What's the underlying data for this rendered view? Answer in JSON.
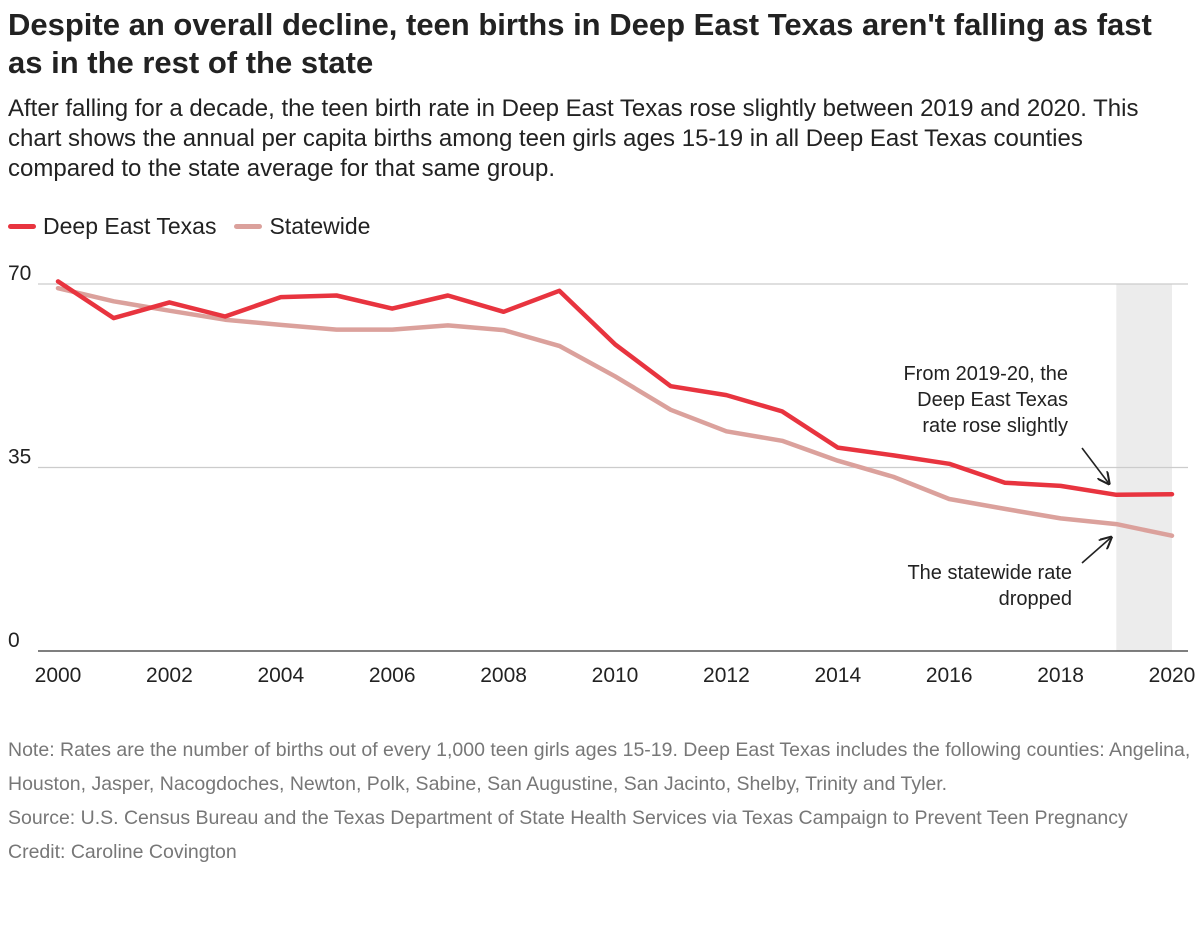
{
  "title": "Despite an overall decline, teen births in Deep East Texas aren't falling as fast as in the rest of the state",
  "subtitle": "After falling for a decade, the teen birth rate in Deep East Texas rose slightly between 2019 and 2020. This chart shows the annual per capita births among teen girls ages 15-19 in all Deep East Texas counties compared to the state average for that same group.",
  "legend": [
    {
      "label": "Deep East Texas",
      "color": "#e8343f"
    },
    {
      "label": "Statewide",
      "color": "#dba19c"
    }
  ],
  "chart_data": {
    "type": "line",
    "x": [
      2000,
      2001,
      2002,
      2003,
      2004,
      2005,
      2006,
      2007,
      2008,
      2009,
      2010,
      2011,
      2012,
      2013,
      2014,
      2015,
      2016,
      2017,
      2018,
      2019,
      2020
    ],
    "series": [
      {
        "name": "Deep East Texas",
        "color": "#e8343f",
        "values": [
          70.5,
          63.5,
          66.5,
          63.8,
          67.5,
          67.8,
          65.3,
          67.8,
          64.7,
          68.7,
          58.5,
          50.5,
          48.8,
          45.7,
          38.8,
          37.3,
          35.7,
          32.1,
          31.5,
          29.8,
          29.9
        ]
      },
      {
        "name": "Statewide",
        "color": "#dba19c",
        "values": [
          69.2,
          66.7,
          64.9,
          63.2,
          62.2,
          61.3,
          61.3,
          62.1,
          61.2,
          58.2,
          52.4,
          46.0,
          41.9,
          40.1,
          36.3,
          33.2,
          29.0,
          27.1,
          25.3,
          24.2,
          22.0
        ]
      }
    ],
    "x_ticks": [
      "2000",
      "2002",
      "2004",
      "2006",
      "2008",
      "2010",
      "2012",
      "2014",
      "2016",
      "2018",
      "2020"
    ],
    "y_ticks": [
      "0",
      "35",
      "70"
    ],
    "ylim": [
      0,
      70
    ],
    "xlim": [
      2000,
      2020
    ],
    "highlight_range": [
      2019,
      2020
    ],
    "annotations": [
      {
        "lines": [
          "From 2019-20, the",
          "Deep East Texas",
          "rate rose slightly"
        ],
        "target_x": 2019,
        "target_y": 29.8
      },
      {
        "lines": [
          "The statewide rate",
          "dropped"
        ],
        "target_x": 2019,
        "target_y": 24.2
      }
    ]
  },
  "notes": {
    "note": "Note: Rates are the number of births out of every 1,000 teen girls ages 15-19. Deep East Texas includes the following counties: Angelina, Houston, Jasper, Nacogdoches, Newton, Polk, Sabine, San Augustine, San Jacinto, Shelby, Trinity and Tyler.",
    "source": "Source: U.S. Census Bureau and the Texas Department of State Health Services via Texas Campaign to Prevent Teen Pregnancy",
    "credit": "Credit: Caroline Covington"
  }
}
